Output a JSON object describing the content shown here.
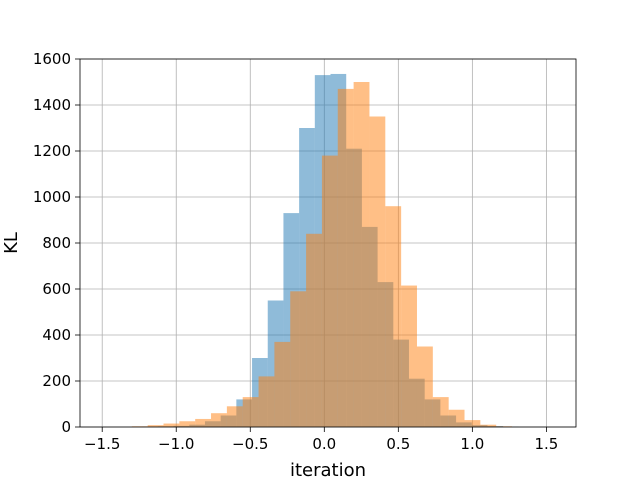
{
  "chart_data": {
    "type": "histogram",
    "title": "",
    "xlabel": "iteration",
    "ylabel": "KL",
    "xlim": [
      -1.65,
      1.7
    ],
    "ylim": [
      0,
      1600
    ],
    "xticks": [
      -1.5,
      -1.0,
      -0.5,
      0.0,
      0.5,
      1.0,
      1.5
    ],
    "xtick_labels": [
      "−1.5",
      "−1.0",
      "−0.5",
      "0.0",
      "0.5",
      "1.0",
      "1.5"
    ],
    "yticks": [
      0,
      200,
      400,
      600,
      800,
      1000,
      1200,
      1400,
      1600
    ],
    "ytick_labels": [
      "0",
      "200",
      "400",
      "600",
      "800",
      "1000",
      "1200",
      "1400",
      "1600"
    ],
    "grid": true,
    "legend": "none",
    "series": [
      {
        "color": "#1f77b4",
        "alpha": 0.5,
        "bin_width": 0.106,
        "bin_starts": [
          -1.23,
          -1.124,
          -1.018,
          -0.912,
          -0.806,
          -0.7,
          -0.594,
          -0.488,
          -0.382,
          -0.276,
          -0.17,
          -0.064,
          0.042,
          0.148,
          0.254,
          0.36,
          0.466,
          0.572,
          0.678,
          0.784,
          0.89,
          0.996,
          1.102,
          1.208
        ],
        "counts": [
          2,
          3,
          5,
          10,
          25,
          50,
          120,
          300,
          550,
          930,
          1300,
          1530,
          1535,
          1210,
          870,
          630,
          380,
          210,
          120,
          50,
          20,
          8,
          4,
          1
        ]
      },
      {
        "color": "#ff7f0e",
        "alpha": 0.5,
        "bin_width": 0.107,
        "bin_starts": [
          -1.3,
          -1.193,
          -1.086,
          -0.979,
          -0.872,
          -0.765,
          -0.658,
          -0.551,
          -0.444,
          -0.337,
          -0.23,
          -0.123,
          -0.016,
          0.091,
          0.198,
          0.305,
          0.412,
          0.519,
          0.626,
          0.733,
          0.84,
          0.947,
          1.054,
          1.161
        ],
        "counts": [
          3,
          8,
          15,
          25,
          35,
          60,
          90,
          130,
          220,
          370,
          590,
          840,
          1180,
          1470,
          1500,
          1350,
          960,
          615,
          350,
          130,
          75,
          30,
          10,
          3
        ]
      }
    ]
  }
}
